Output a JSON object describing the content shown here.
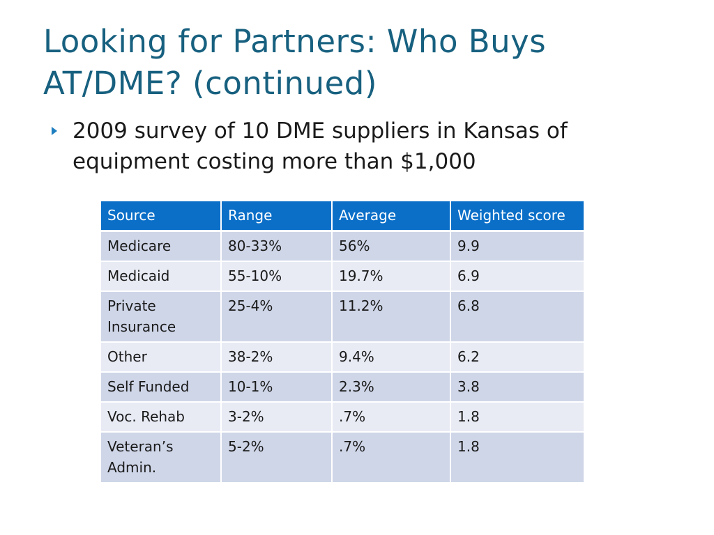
{
  "slide": {
    "title": "Looking for Partners:  Who Buys AT/DME?  (continued)",
    "bullet": "2009 survey of 10 DME suppliers in Kansas of equipment costing more than $1,000"
  },
  "table": {
    "headers": [
      "Source",
      "Range",
      "Average",
      "Weighted score"
    ],
    "rows": [
      [
        "Medicare",
        "80-33%",
        "56%",
        "9.9"
      ],
      [
        "Medicaid",
        "55-10%",
        "19.7%",
        "6.9"
      ],
      [
        "Private Insurance",
        "25-4%",
        "11.2%",
        "6.8"
      ],
      [
        "Other",
        "38-2%",
        "9.4%",
        "6.2"
      ],
      [
        "Self Funded",
        "10-1%",
        "2.3%",
        "3.8"
      ],
      [
        "Voc. Rehab",
        "3-2%",
        ".7%",
        "1.8"
      ],
      [
        "Veteran’s Admin.",
        "5-2%",
        ".7%",
        "1.8"
      ]
    ]
  },
  "colors": {
    "title": "#17607f",
    "bullet_arrow": "#1f7fbf",
    "header_fill": "#0b6fc8",
    "row_fill_dark": "#cfd6e8",
    "row_fill_light": "#e8ebf4"
  },
  "icons": {
    "bullet": "triangle-right-icon"
  }
}
